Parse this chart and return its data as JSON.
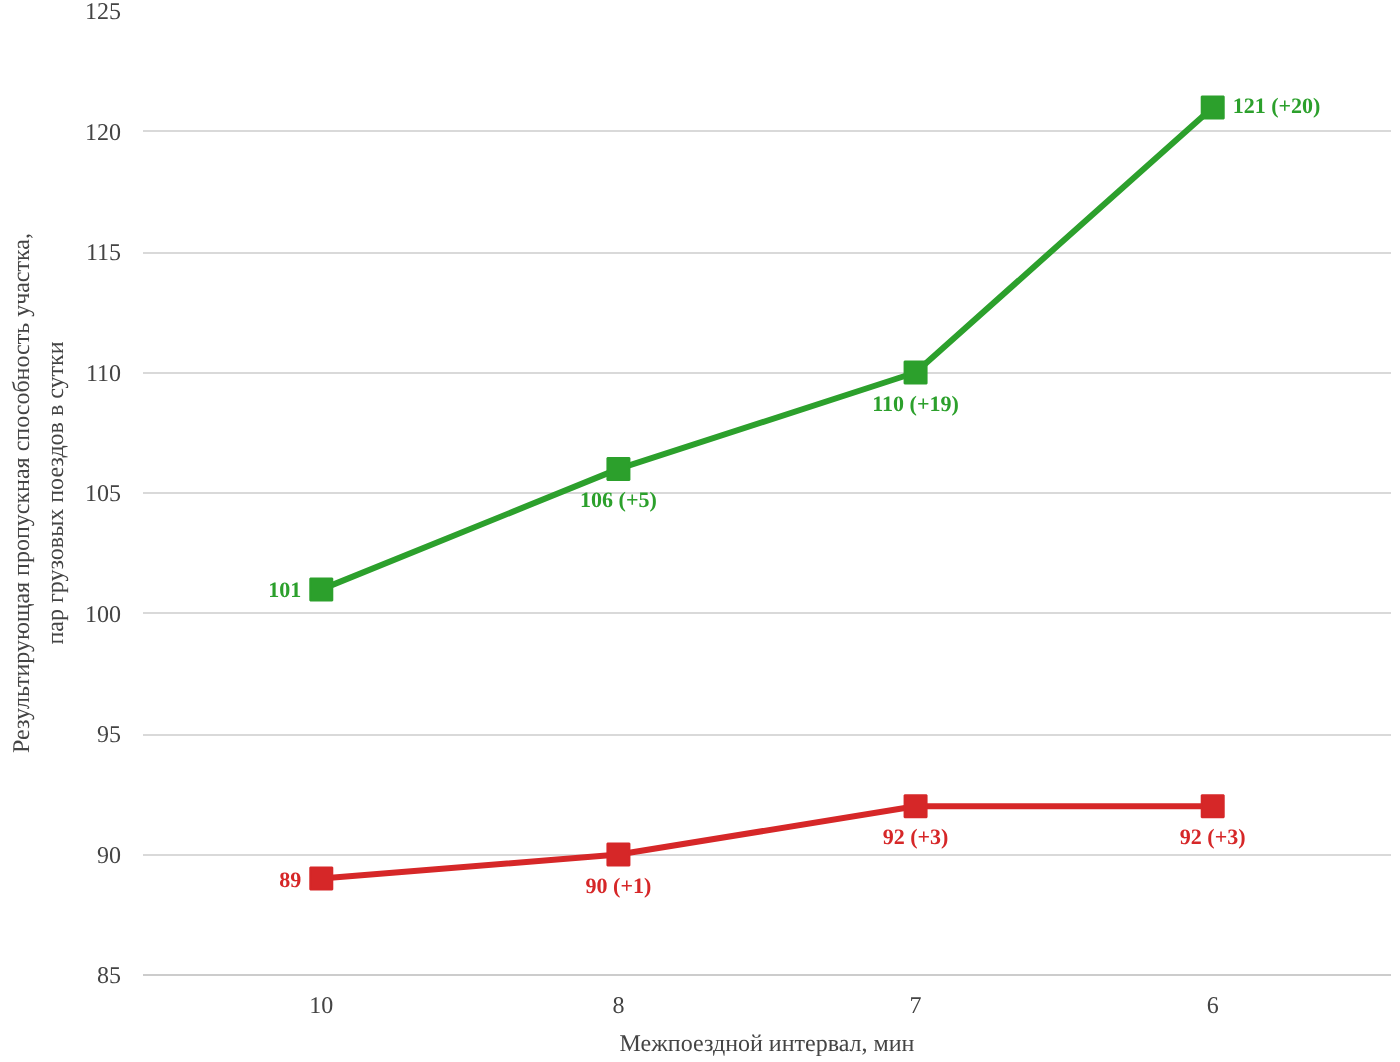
{
  "chart_data": {
    "type": "line",
    "xlabel": "Межпоездной интервал, мин",
    "ylabel": "Результирующая пропускная способность участка,\nпар грузовых поездов в сутки",
    "categories": [
      "10",
      "8",
      "7",
      "6"
    ],
    "series": [
      {
        "color": "#2ca02c",
        "values": [
          101,
          106,
          110,
          121
        ],
        "value_labels": [
          "101",
          "106 (+5)",
          "110 (+19)",
          "121 (+20)"
        ]
      },
      {
        "color": "#d62728",
        "values": [
          89,
          90,
          92,
          92
        ],
        "value_labels": [
          "89",
          "90 (+1)",
          "92 (+3)",
          "92 (+3)"
        ]
      }
    ],
    "ylim": [
      85,
      125
    ],
    "yticks": [
      85,
      90,
      95,
      100,
      105,
      110,
      115,
      120,
      125
    ],
    "grid": "y",
    "marker": "square",
    "line_style": "solid"
  }
}
